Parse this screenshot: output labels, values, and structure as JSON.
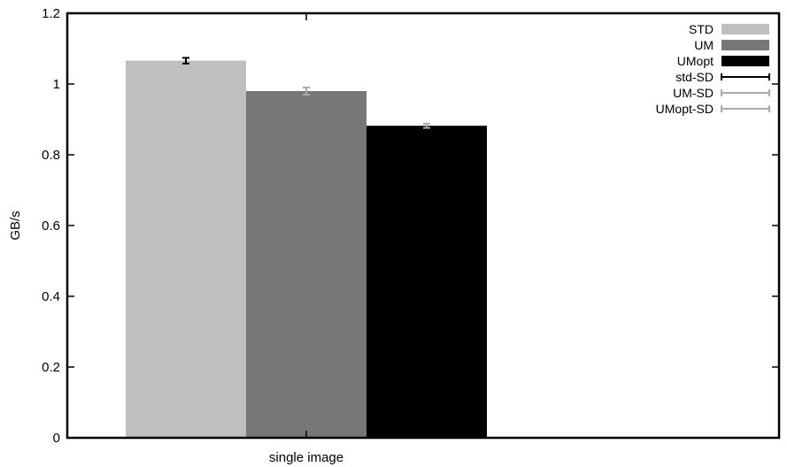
{
  "chart_data": {
    "type": "bar",
    "categories": [
      "single image"
    ],
    "series": [
      {
        "name": "STD",
        "values": [
          1.066
        ],
        "sd": [
          0.008
        ],
        "color": "#bfbfbf",
        "err_color": "#000000"
      },
      {
        "name": "UM",
        "values": [
          0.98
        ],
        "sd": [
          0.01
        ],
        "color": "#777777",
        "err_color": "#aaaaaa"
      },
      {
        "name": "UMopt",
        "values": [
          0.882
        ],
        "sd": [
          0.006
        ],
        "color": "#000000",
        "err_color": "#aaaaaa"
      }
    ],
    "error_legend": [
      {
        "name": "std-SD",
        "color": "#000000"
      },
      {
        "name": "UM-SD",
        "color": "#aaaaaa"
      },
      {
        "name": "UMopt-SD",
        "color": "#aaaaaa"
      }
    ],
    "xlabel": "single image",
    "ylabel": "GB/s",
    "ylim": [
      0,
      1.2
    ],
    "yticks": [
      "0",
      "0.2",
      "0.4",
      "0.6",
      "0.8",
      "1",
      "1.2"
    ],
    "grid": false,
    "legend_position": "top-right"
  }
}
